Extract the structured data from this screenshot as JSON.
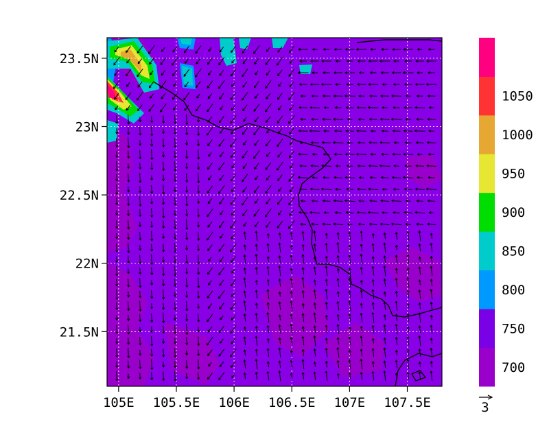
{
  "map": {
    "lon_range": [
      104.9,
      107.8
    ],
    "lat_range": [
      21.1,
      23.65
    ],
    "lon_ticks": [
      {
        "value": 105.0,
        "label": "105E"
      },
      {
        "value": 105.5,
        "label": "105.5E"
      },
      {
        "value": 106.0,
        "label": "106E"
      },
      {
        "value": 106.5,
        "label": "106.5E"
      },
      {
        "value": 107.0,
        "label": "107E"
      },
      {
        "value": 107.5,
        "label": "107.5E"
      }
    ],
    "lat_ticks": [
      {
        "value": 21.5,
        "label": "21.5N"
      },
      {
        "value": 22.0,
        "label": "22N"
      },
      {
        "value": 22.5,
        "label": "22.5N"
      },
      {
        "value": 23.0,
        "label": "23N"
      },
      {
        "value": 23.5,
        "label": "23.5N"
      }
    ],
    "grid": true,
    "background_fill": "#8a00e6",
    "border_color": "#000000"
  },
  "colorbar": {
    "levels": [
      {
        "label": "700",
        "color": "#9900cc"
      },
      {
        "label": "750",
        "color": "#7a00e6"
      },
      {
        "label": "800",
        "color": "#0099ff"
      },
      {
        "label": "850",
        "color": "#00cccc"
      },
      {
        "label": "900",
        "color": "#00dd00"
      },
      {
        "label": "950",
        "color": "#e6e633"
      },
      {
        "label": "1000",
        "color": "#e6a833"
      },
      {
        "label": "1050",
        "color": "#ff3333"
      },
      {
        "label": "",
        "color": "#ff0080"
      }
    ]
  },
  "vector_legend": {
    "label": "3"
  }
}
